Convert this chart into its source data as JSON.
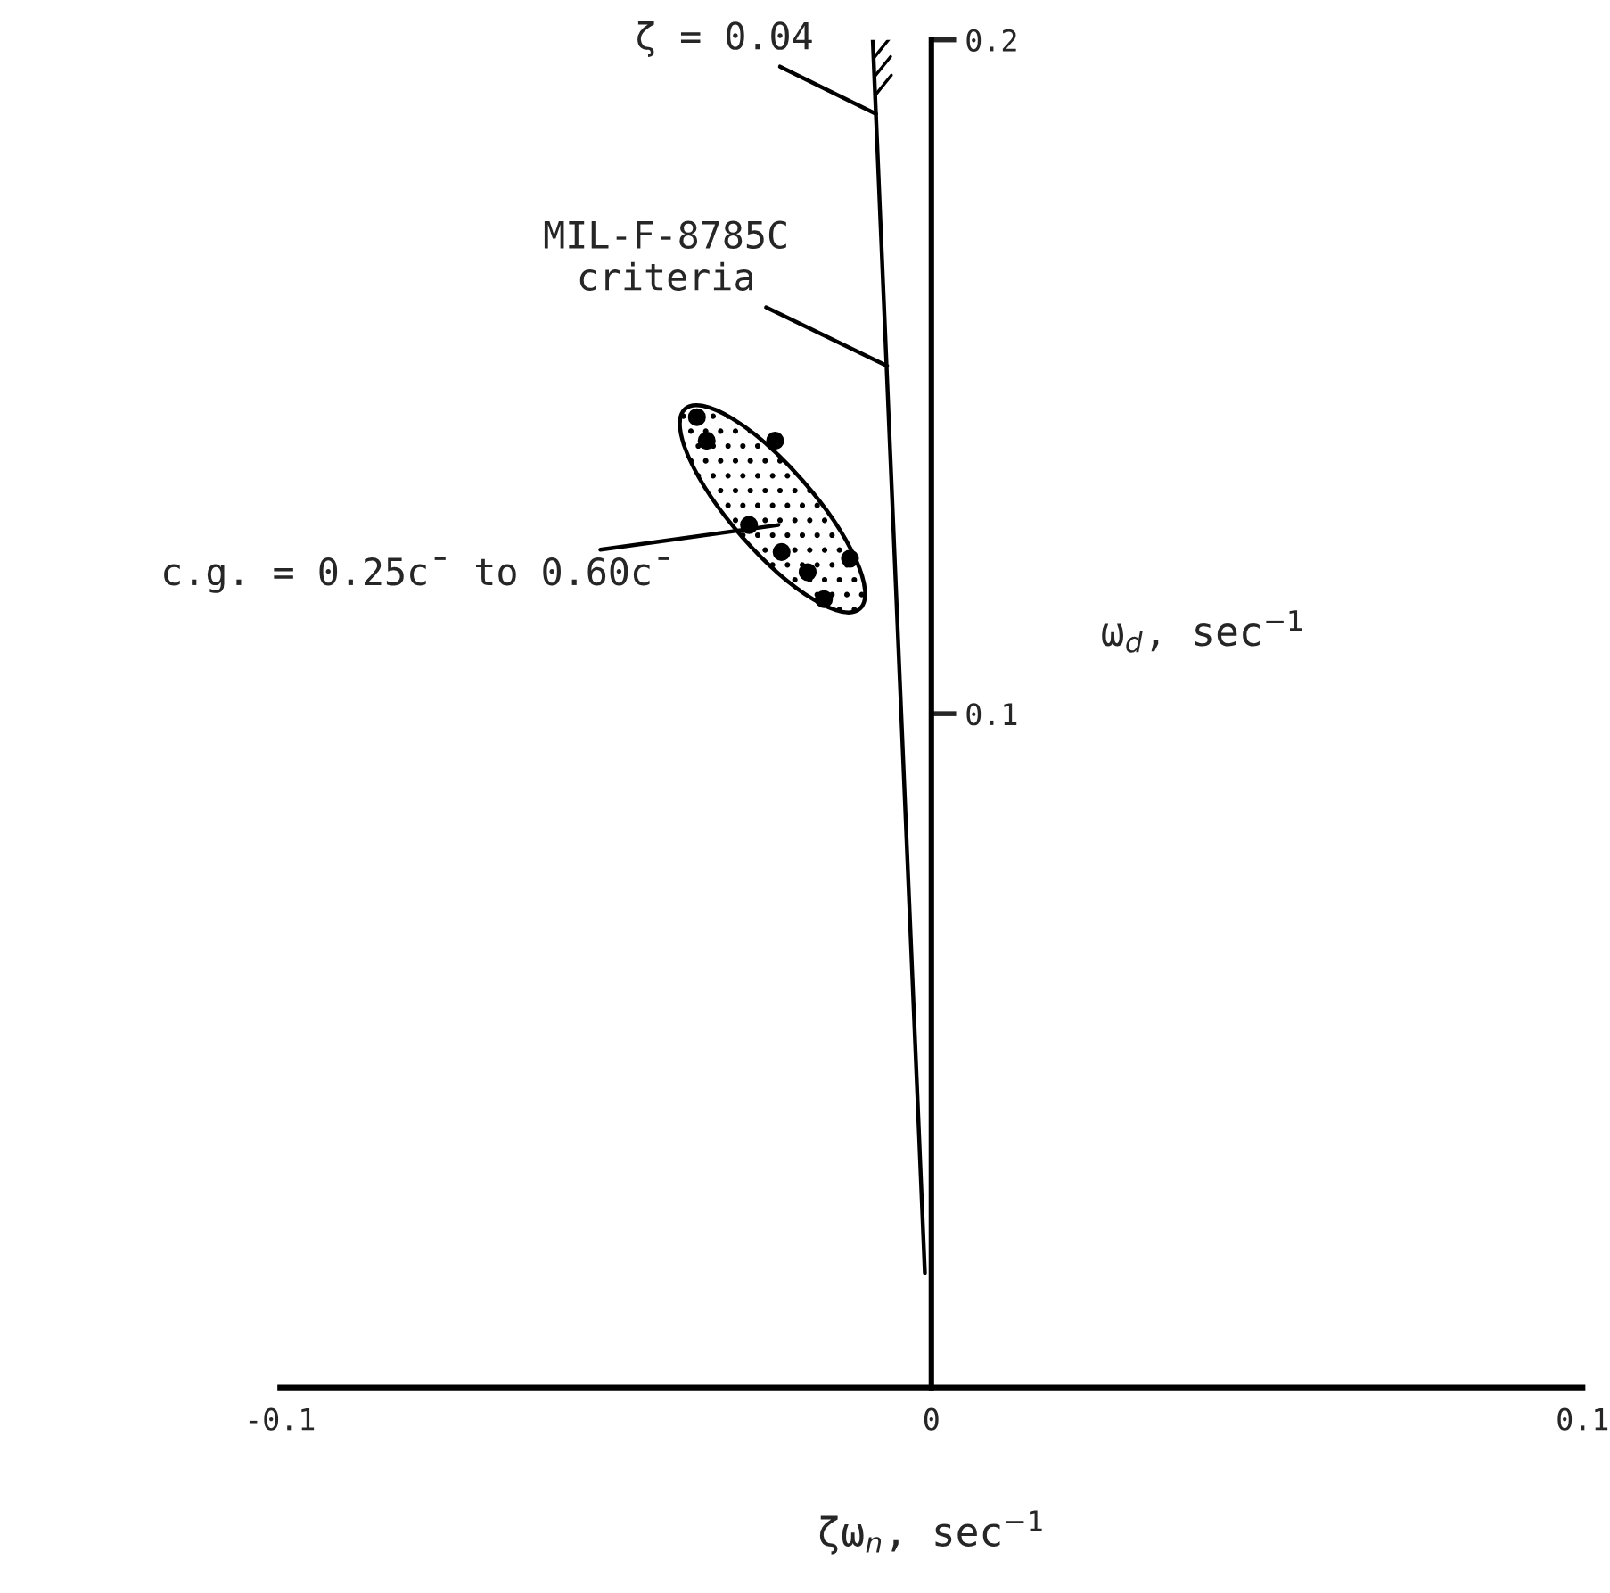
{
  "chart_data": {
    "type": "scatter",
    "xlabel": "ζω$_{n}$, sec$^{−1}$",
    "ylabel": "ω$_{d}$, sec$^{−1}$",
    "series": [
      {
        "type": "scatter",
        "color": "#000000",
        "marker": "circle",
        "x": [
          -0.036,
          -0.0345,
          -0.024,
          -0.028,
          -0.023,
          -0.019,
          -0.0125,
          -0.0165
        ],
        "values": [
          0.144,
          0.1405,
          0.1405,
          0.128,
          0.124,
          0.121,
          0.123,
          0.117
        ]
      },
      {
        "type": "line",
        "color": "#000000",
        "line_style": "solid",
        "x": [
          -0.001,
          -0.009
        ],
        "values": [
          0.017,
          0.2
        ]
      }
    ],
    "annotations": [
      {
        "text": "ζ = 0.04",
        "x": -0.0085,
        "y": 0.189
      },
      {
        "text": "MIL-F-8785C\ncriteria",
        "x": -0.0068,
        "y": 0.1516
      },
      "c.g. = 0.25c̄ to 0.60c̄"
    ],
    "xlim": [
      -0.1,
      0.1
    ],
    "ylim": [
      0,
      0.2
    ],
    "xticks": [
      {
        "value": -0.1,
        "label": "-0.1"
      },
      0,
      0.1
    ],
    "yticks": [
      0.1,
      0.2
    ],
    "grid": false
  }
}
